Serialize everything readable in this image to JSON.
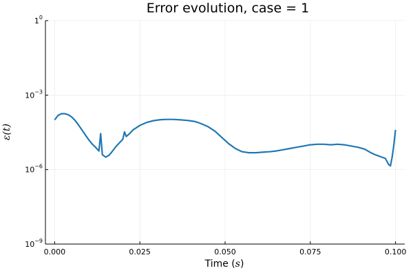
{
  "chart_data": {
    "type": "line",
    "title": "Error evolution, case = 1",
    "xlabel": {
      "text": "Time (",
      "symbol": "s",
      "suffix": ")"
    },
    "ylabel": {
      "text": "ε(t)"
    },
    "xlim": [
      -0.0027,
      0.1027
    ],
    "yscale": "log10",
    "ylim_exp": [
      -9,
      0
    ],
    "x_ticks": [
      {
        "value": 0.0,
        "label": "0.000"
      },
      {
        "value": 0.025,
        "label": "0.025"
      },
      {
        "value": 0.05,
        "label": "0.050"
      },
      {
        "value": 0.075,
        "label": "0.075"
      },
      {
        "value": 0.1,
        "label": "0.100"
      }
    ],
    "y_ticks": [
      {
        "exp": -9,
        "base": "10",
        "sup": "−9"
      },
      {
        "exp": -6,
        "base": "10",
        "sup": "−6"
      },
      {
        "exp": -3,
        "base": "10",
        "sup": "−3"
      },
      {
        "exp": 0,
        "base": "1",
        "sup": "0"
      }
    ],
    "grid": true,
    "legend": "none",
    "series": [
      {
        "color": "#1f77b4",
        "x": [
          0.0,
          0.001,
          0.002,
          0.003,
          0.004,
          0.005,
          0.006,
          0.007,
          0.008,
          0.009,
          0.01,
          0.011,
          0.012,
          0.013,
          0.0135,
          0.014,
          0.015,
          0.016,
          0.017,
          0.018,
          0.019,
          0.02,
          0.0205,
          0.021,
          0.022,
          0.023,
          0.025,
          0.027,
          0.029,
          0.031,
          0.033,
          0.035,
          0.037,
          0.039,
          0.04,
          0.041,
          0.042,
          0.043,
          0.045,
          0.047,
          0.049,
          0.051,
          0.053,
          0.055,
          0.057,
          0.059,
          0.061,
          0.063,
          0.065,
          0.067,
          0.069,
          0.071,
          0.073,
          0.075,
          0.077,
          0.079,
          0.081,
          0.083,
          0.085,
          0.087,
          0.089,
          0.091,
          0.092,
          0.093,
          0.094,
          0.095,
          0.096,
          0.097,
          0.098,
          0.0985,
          0.099,
          0.0995,
          0.1
        ],
        "log10_y": [
          -4.0,
          -3.82,
          -3.75,
          -3.75,
          -3.79,
          -3.88,
          -4.02,
          -4.2,
          -4.4,
          -4.6,
          -4.8,
          -4.97,
          -5.1,
          -5.25,
          -4.55,
          -5.4,
          -5.5,
          -5.42,
          -5.25,
          -5.07,
          -4.92,
          -4.78,
          -4.48,
          -4.67,
          -4.55,
          -4.4,
          -4.22,
          -4.1,
          -4.03,
          -3.99,
          -3.98,
          -3.98,
          -4.0,
          -4.02,
          -4.04,
          -4.06,
          -4.1,
          -4.15,
          -4.27,
          -4.45,
          -4.7,
          -4.95,
          -5.15,
          -5.28,
          -5.32,
          -5.32,
          -5.3,
          -5.28,
          -5.25,
          -5.2,
          -5.15,
          -5.1,
          -5.05,
          -5.0,
          -4.98,
          -4.98,
          -5.0,
          -4.98,
          -5.0,
          -5.05,
          -5.1,
          -5.18,
          -5.26,
          -5.34,
          -5.4,
          -5.45,
          -5.5,
          -5.55,
          -5.8,
          -5.85,
          -5.5,
          -5.0,
          -4.4
        ]
      }
    ]
  }
}
